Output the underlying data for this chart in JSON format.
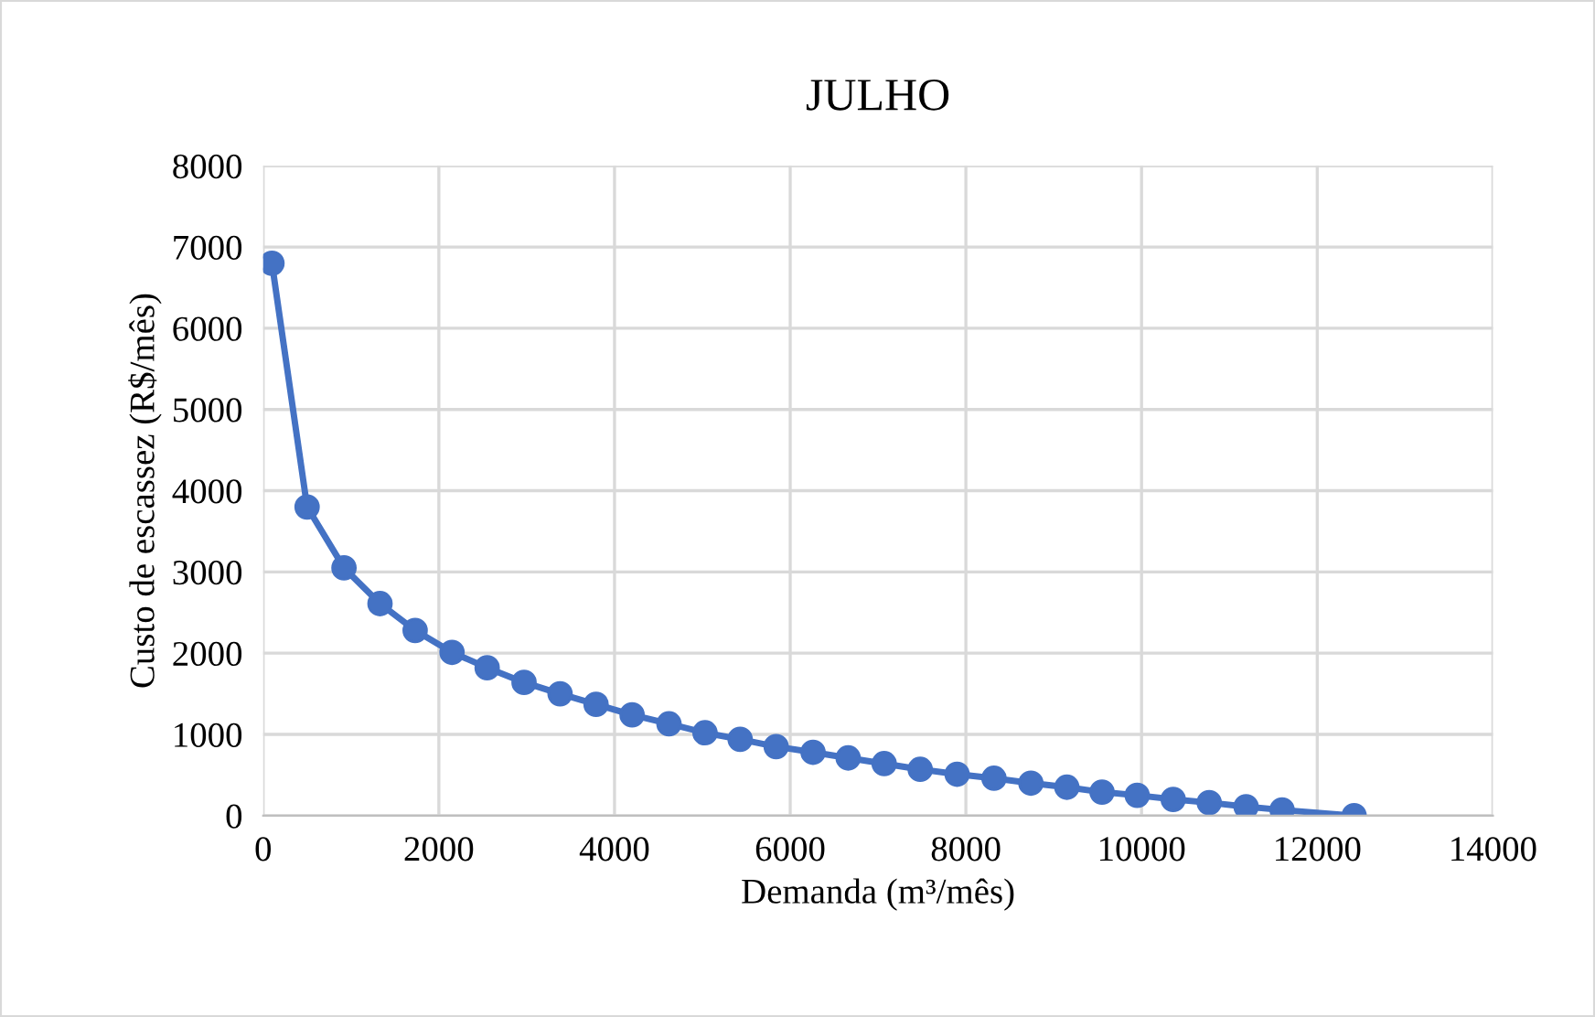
{
  "chart_data": {
    "type": "line",
    "title": "JULHO",
    "xlabel": "Demanda (m³/mês)",
    "ylabel": "Custo de escassez (R$/mês)",
    "x": [
      100,
      500,
      920,
      1330,
      1730,
      2150,
      2550,
      2970,
      3380,
      3790,
      4200,
      4620,
      5030,
      5430,
      5840,
      6260,
      6660,
      7070,
      7480,
      7900,
      8320,
      8740,
      9150,
      9550,
      9950,
      10360,
      10770,
      11190,
      11600,
      12420
    ],
    "series": [
      {
        "color": "#4472c4",
        "values": [
          6800,
          3800,
          3050,
          2610,
          2280,
          2010,
          1820,
          1640,
          1500,
          1370,
          1240,
          1130,
          1020,
          940,
          850,
          780,
          710,
          640,
          570,
          510,
          460,
          400,
          350,
          290,
          250,
          200,
          160,
          110,
          70,
          0
        ]
      }
    ],
    "xlim": [
      0,
      14000
    ],
    "xticks": [
      0,
      2000,
      4000,
      6000,
      8000,
      10000,
      12000,
      14000
    ],
    "ylim": [
      0,
      8000
    ],
    "yticks": [
      0,
      1000,
      2000,
      3000,
      4000,
      5000,
      6000,
      7000,
      8000
    ],
    "grid": true,
    "marker": "circle",
    "line_style": "solid"
  }
}
